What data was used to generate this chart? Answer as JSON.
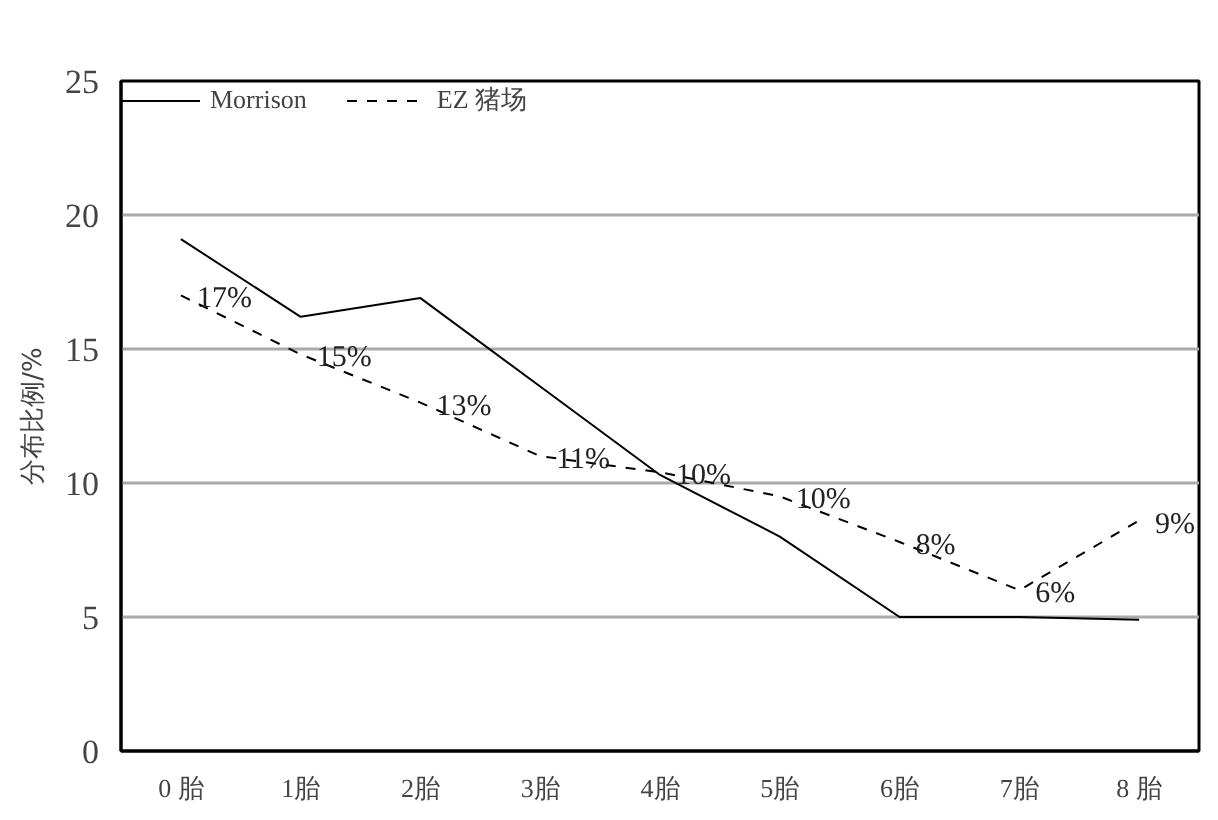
{
  "chart_data": {
    "type": "line",
    "ylabel": "分布比例/%",
    "categories": [
      "0 胎",
      "1胎",
      "2胎",
      "3胎",
      "4胎",
      "5胎",
      "6胎",
      "7胎",
      "8 胎"
    ],
    "series": [
      {
        "name": "Morrison",
        "color": "#000000",
        "line_style": "solid",
        "values": [
          19.1,
          16.2,
          16.9,
          13.6,
          10.3,
          8.0,
          5.0,
          5.0,
          4.9
        ]
      },
      {
        "name": "EZ 猪场",
        "color": "#000000",
        "line_style": "dashed",
        "values": [
          17.0,
          14.8,
          13.0,
          11.0,
          10.4,
          9.5,
          7.8,
          6.0,
          8.6
        ],
        "value_labels": [
          "17%",
          "15%",
          "13%",
          "11%",
          "10%",
          "10%",
          "8%",
          "6%",
          "9%"
        ]
      }
    ],
    "ylim": [
      0,
      25
    ],
    "yticks": [
      0,
      5,
      10,
      15,
      20,
      25
    ],
    "grid": "y",
    "legend": "top left",
    "marker": "none"
  }
}
